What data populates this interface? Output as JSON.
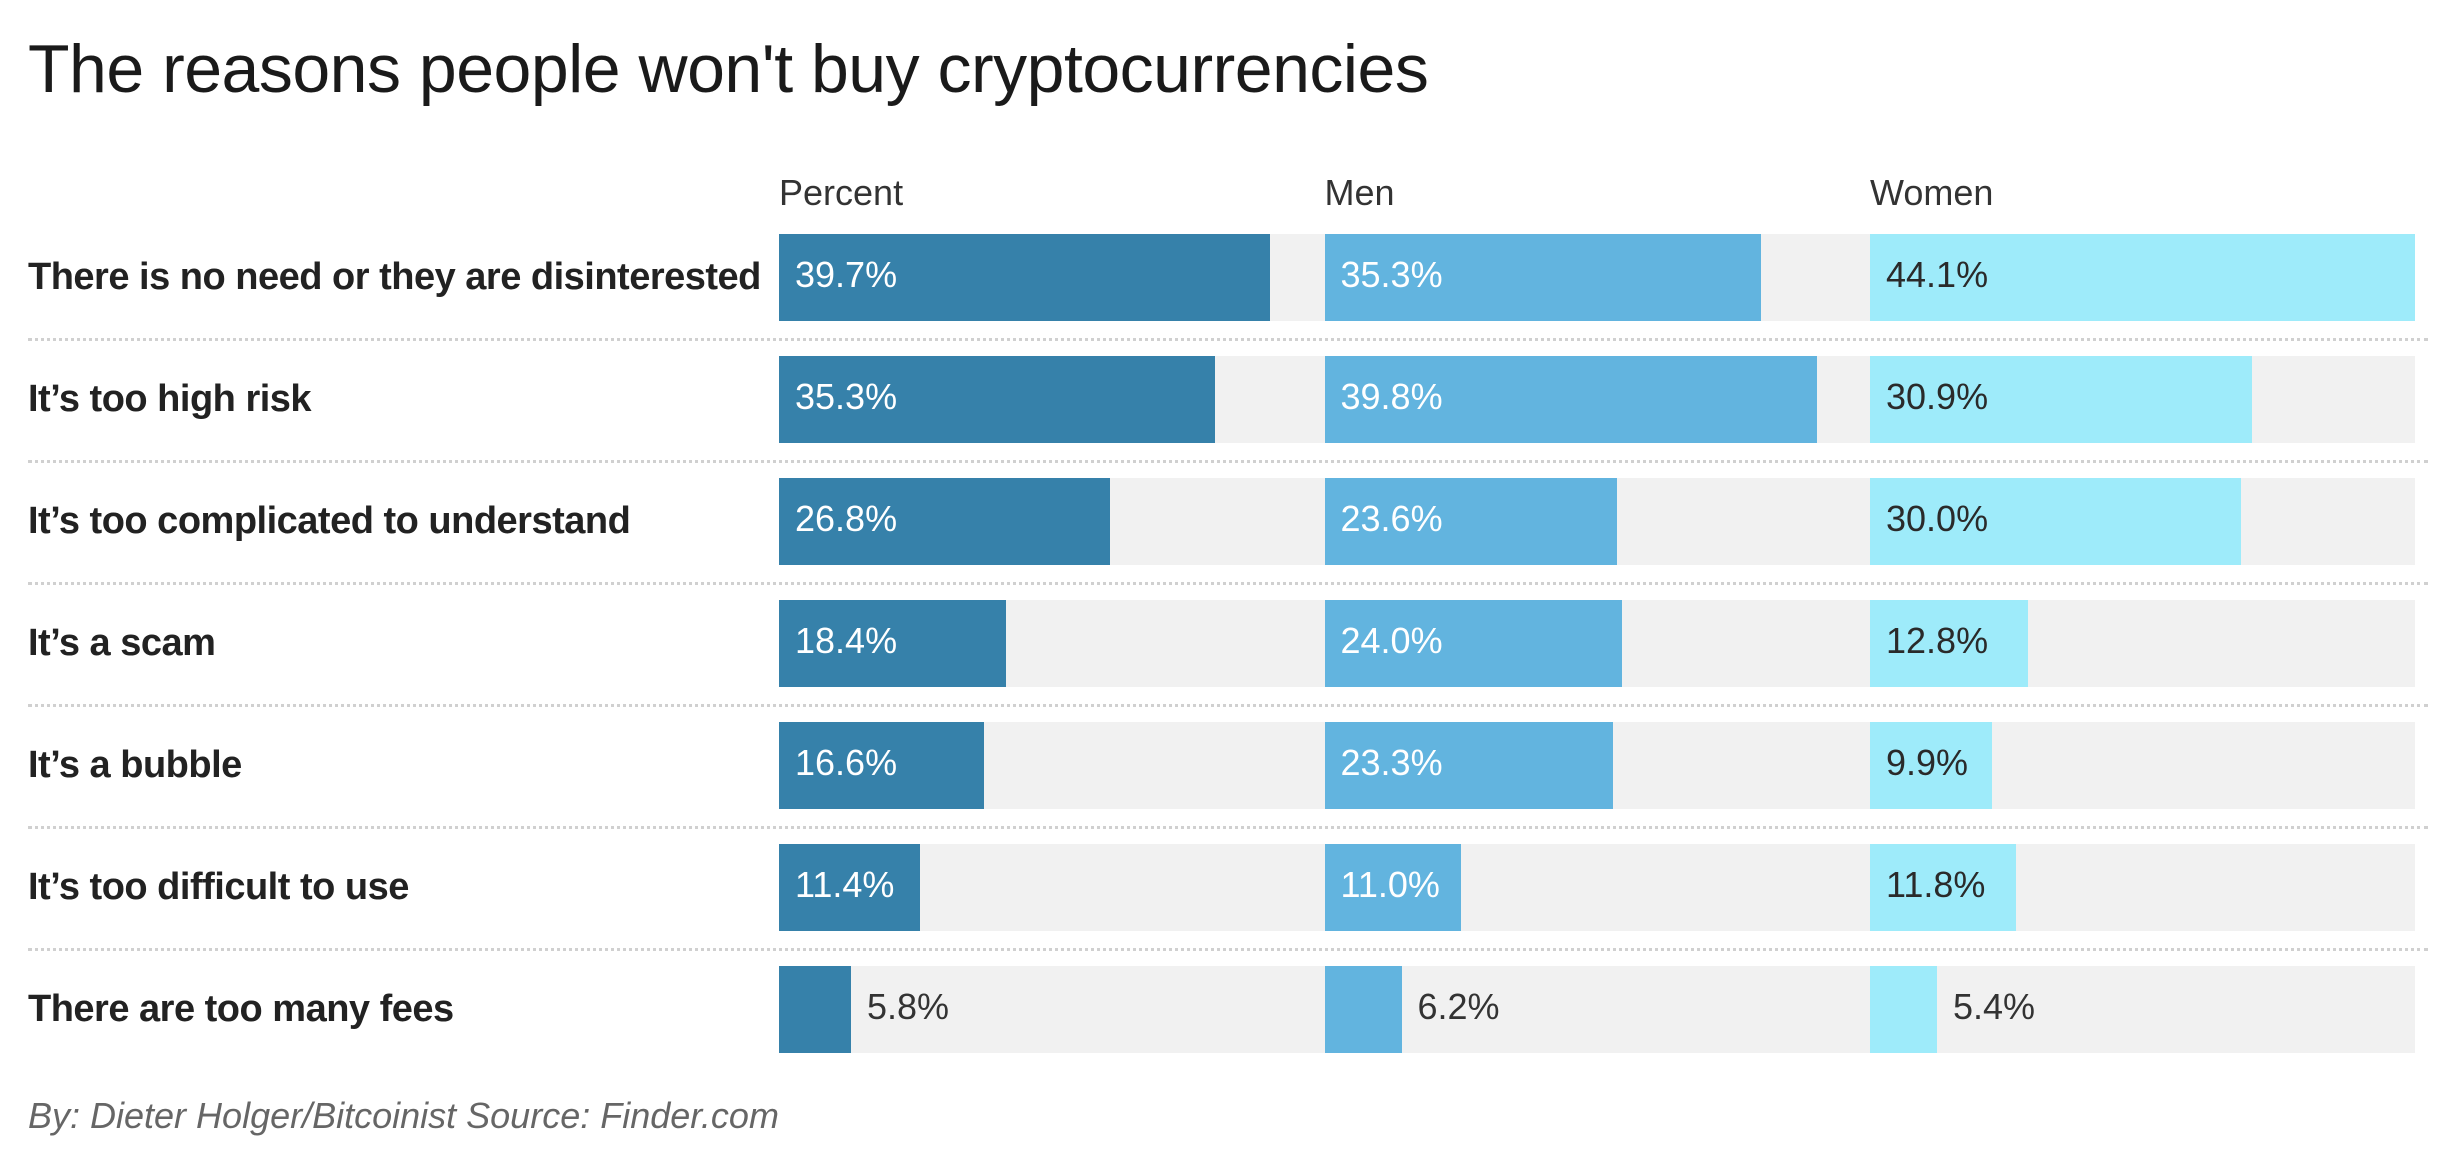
{
  "chart_data": {
    "type": "bar",
    "orientation": "horizontal",
    "title": "The reasons people won't buy cryptocurrencies",
    "xlabel": "",
    "ylabel": "",
    "xlim": [
      0,
      44.1
    ],
    "unit": "%",
    "categories": [
      "There is no need or they are disinterested",
      "It’s too high risk",
      "It’s too complicated to understand",
      "It’s a scam",
      "It’s a bubble",
      "It’s too difficult to use",
      "There are too many fees"
    ],
    "series": [
      {
        "name": "Percent",
        "color": "#3681aa",
        "label_color": "#ffffff",
        "values": [
          39.7,
          35.3,
          26.8,
          18.4,
          16.6,
          11.4,
          5.8
        ]
      },
      {
        "name": "Men",
        "color": "#62b4df",
        "label_color": "#ffffff",
        "values": [
          35.3,
          39.8,
          23.6,
          24.0,
          23.3,
          11.0,
          6.2
        ]
      },
      {
        "name": "Women",
        "color": "#9eebfa",
        "label_color": "#2a2a2a",
        "values": [
          44.1,
          30.9,
          30.0,
          12.8,
          9.9,
          11.8,
          5.4
        ]
      }
    ],
    "outside_label_color": "#333333",
    "track_color": "#f1f1f1",
    "grid": false,
    "legend": "column-headers-top",
    "footer": "By: Dieter Holger/Bitcoinist Source: Finder.com"
  }
}
